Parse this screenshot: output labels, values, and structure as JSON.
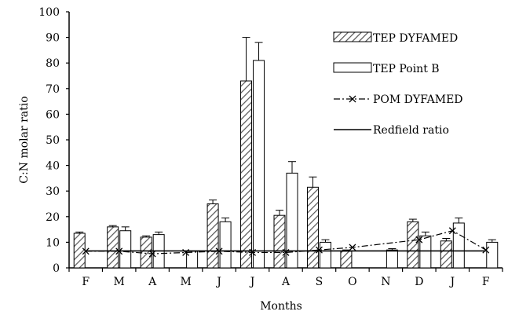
{
  "chart_data": {
    "type": "bar",
    "xlabel": "Months",
    "ylabel": "C:N molar ratio",
    "ylim": [
      0,
      100
    ],
    "yticks": [
      0,
      10,
      20,
      30,
      40,
      50,
      60,
      70,
      80,
      90,
      100
    ],
    "categories": [
      "F",
      "M",
      "A",
      "M",
      "J",
      "J",
      "A",
      "S",
      "O",
      "N",
      "D",
      "J",
      "F"
    ],
    "grid": false,
    "legend_position": "top-right",
    "series": [
      {
        "name": "TEP DYFAMED",
        "kind": "bar",
        "pattern": "hatched",
        "values": [
          13.5,
          16,
          12,
          null,
          25,
          73,
          20.5,
          31.5,
          6.5,
          null,
          18,
          10.5,
          null
        ],
        "errors": [
          0.5,
          0.5,
          0.5,
          null,
          1.5,
          17,
          2,
          4,
          0.5,
          null,
          1,
          1,
          null
        ]
      },
      {
        "name": "TEP Point B",
        "kind": "bar",
        "pattern": "open",
        "values": [
          null,
          14.5,
          13,
          6.5,
          18,
          81,
          37,
          10,
          null,
          7,
          12.5,
          17.5,
          10
        ],
        "errors": [
          null,
          1.5,
          1,
          null,
          1.5,
          7,
          4.5,
          1,
          null,
          0.5,
          1.5,
          2,
          1
        ]
      },
      {
        "name": "POM DYFAMED",
        "kind": "line",
        "style": "dash-dot with x markers",
        "values": [
          6.5,
          6.5,
          5.5,
          6,
          6.5,
          6,
          6,
          7,
          8,
          null,
          11,
          14.5,
          7
        ]
      },
      {
        "name": "Redfield ratio",
        "kind": "line",
        "style": "solid",
        "values": [
          6.6,
          6.6,
          6.6,
          6.6,
          6.6,
          6.6,
          6.6,
          6.6,
          6.6,
          6.6,
          6.6,
          6.6,
          6.6
        ]
      }
    ]
  }
}
